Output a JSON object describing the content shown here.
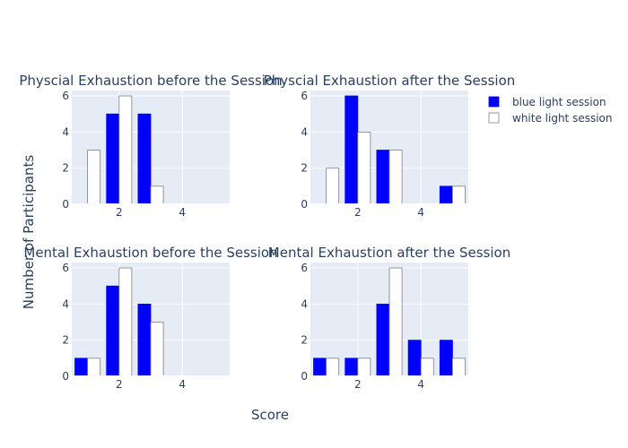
{
  "chart_data": {
    "type": "bar",
    "xlabel": "Score",
    "ylabel": "Number of Participants",
    "x": [
      1,
      2,
      3,
      4,
      5
    ],
    "xticks": [
      2,
      4
    ],
    "yticks": [
      0,
      2,
      4,
      6
    ],
    "ylim": [
      0,
      6.3
    ],
    "xlim": [
      0.5,
      5.5
    ],
    "grid": true,
    "legend_position": "top-right",
    "series_styles": [
      {
        "name": "blue light session",
        "fill": "#0000ff",
        "stroke": "#0000ff"
      },
      {
        "name": "white light session",
        "fill": "#ffffff",
        "stroke": "#7f7f7f"
      }
    ],
    "panels": [
      {
        "title": "Physcial Exhaustion before the Session",
        "series": [
          {
            "name": "blue light session",
            "values": [
              0,
              5,
              5,
              0,
              0
            ]
          },
          {
            "name": "white light session",
            "values": [
              3,
              6,
              1,
              0,
              0
            ]
          }
        ]
      },
      {
        "title": "Physcial Exhaustion after the Session",
        "series": [
          {
            "name": "blue light session",
            "values": [
              0,
              6,
              3,
              0,
              1
            ]
          },
          {
            "name": "white light session",
            "values": [
              2,
              4,
              3,
              0,
              1
            ]
          }
        ]
      },
      {
        "title": "Mental Exhaustion before the Session",
        "series": [
          {
            "name": "blue light session",
            "values": [
              1,
              5,
              4,
              0,
              0
            ]
          },
          {
            "name": "white light session",
            "values": [
              1,
              6,
              3,
              0,
              0
            ]
          }
        ]
      },
      {
        "title": "Mental Exhaustion after the Session",
        "series": [
          {
            "name": "blue light session",
            "values": [
              1,
              1,
              4,
              2,
              2
            ]
          },
          {
            "name": "white light session",
            "values": [
              1,
              1,
              6,
              1,
              1
            ]
          }
        ]
      }
    ]
  },
  "colors": {
    "plot_bg": "#e5ecf6",
    "grid": "#ffffff",
    "text": "#2a3f5f"
  }
}
